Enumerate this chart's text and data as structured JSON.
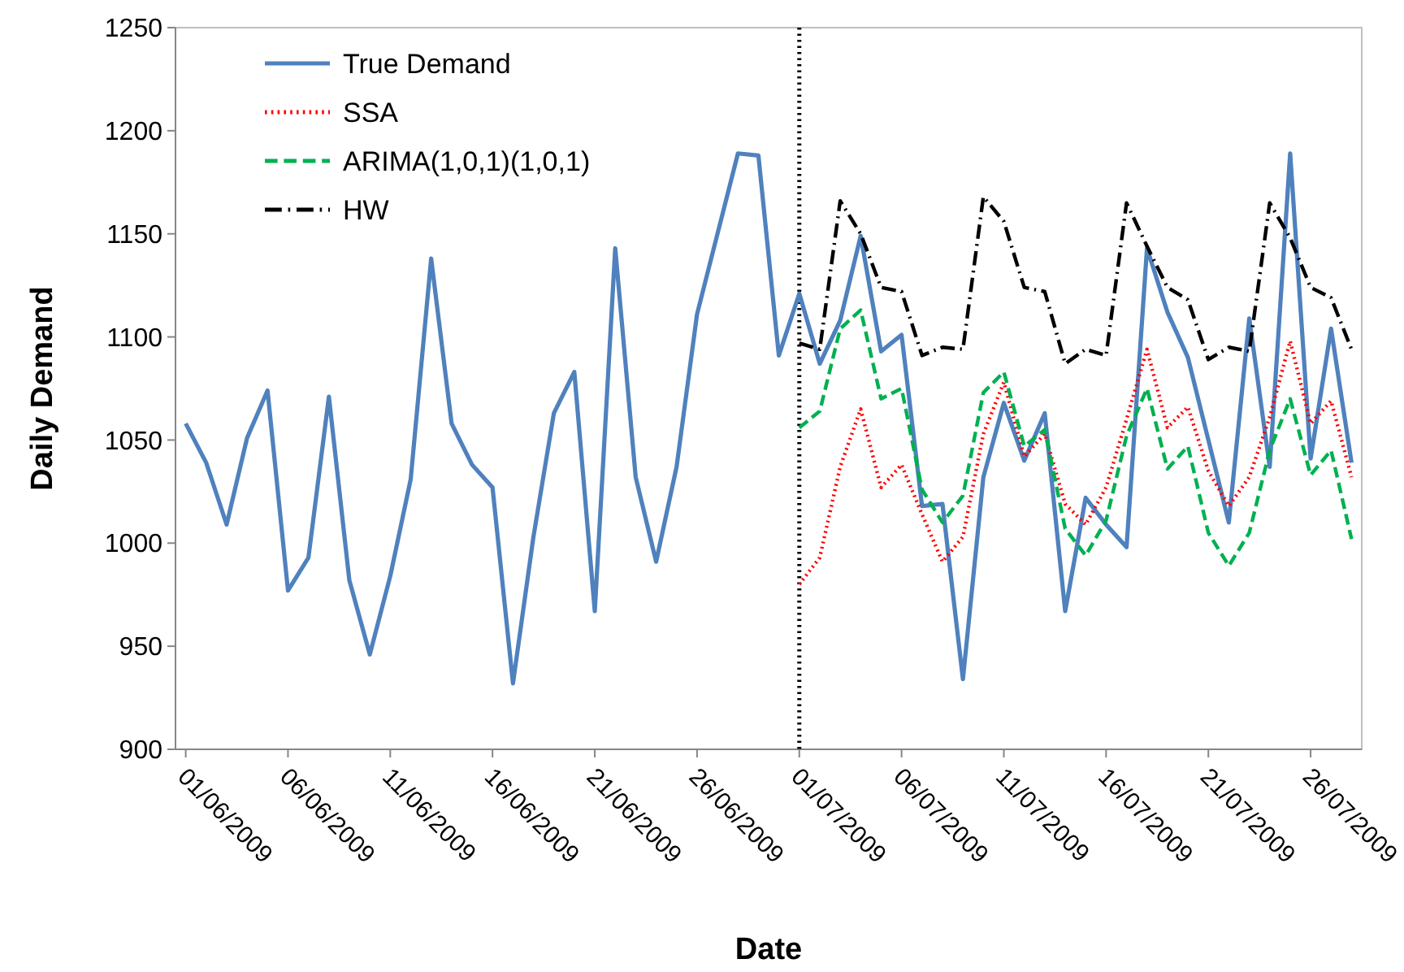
{
  "chart_data": {
    "type": "line",
    "xlabel": "Date",
    "ylabel": "Daily Demand",
    "categories": [
      "01/06/2009",
      null,
      null,
      null,
      null,
      "06/06/2009",
      null,
      null,
      null,
      null,
      "11/06/2009",
      null,
      null,
      null,
      null,
      "16/06/2009",
      null,
      null,
      null,
      null,
      "21/06/2009",
      null,
      null,
      null,
      null,
      "26/06/2009",
      null,
      null,
      null,
      null,
      "01/07/2009",
      null,
      null,
      null,
      null,
      "06/07/2009",
      null,
      null,
      null,
      null,
      "11/07/2009",
      null,
      null,
      null,
      null,
      "16/07/2009",
      null,
      null,
      null,
      null,
      "21/07/2009",
      null,
      null,
      null,
      null,
      "26/07/2009",
      null,
      null
    ],
    "ylim": [
      900,
      1250
    ],
    "yticks": [
      900,
      950,
      1000,
      1050,
      1100,
      1150,
      1200,
      1250
    ],
    "grid": false,
    "legend": "top left",
    "marker": "none",
    "ref_lines": [
      {
        "axis": "x",
        "value": "01/07/2009",
        "color": "#000000",
        "line_style": "dotted"
      }
    ],
    "series": [
      {
        "name": "True Demand",
        "color": "#4f81bd",
        "line_style": "solid",
        "values": [
          1058,
          1039,
          1009,
          1051,
          1074,
          977,
          993,
          1071,
          982,
          946,
          984,
          1031,
          1138,
          1058,
          1038,
          1027,
          932,
          1003,
          1063,
          1083,
          967,
          1143,
          1032,
          991,
          1037,
          1111,
          1150,
          1189,
          1188,
          1091,
          1121,
          1087,
          1108,
          1149,
          1093,
          1101,
          1018,
          1019,
          934,
          1032,
          1068,
          1040,
          1063,
          967,
          1022,
          1009,
          998,
          1143,
          1112,
          1090,
          1050,
          1010,
          1109,
          1037,
          1189,
          1041,
          1104,
          1039
        ]
      },
      {
        "name": "SSA",
        "color": "#ff0000",
        "line_style": "dotted",
        "values": [
          null,
          null,
          null,
          null,
          null,
          null,
          null,
          null,
          null,
          null,
          null,
          null,
          null,
          null,
          null,
          null,
          null,
          null,
          null,
          null,
          null,
          null,
          null,
          null,
          null,
          null,
          null,
          null,
          null,
          null,
          980,
          993,
          1037,
          1065,
          1027,
          1038,
          1014,
          991,
          1003,
          1053,
          1078,
          1042,
          1053,
          1019,
          1009,
          1027,
          1060,
          1094,
          1056,
          1066,
          1035,
          1018,
          1032,
          1061,
          1098,
          1058,
          1069,
          1032
        ]
      },
      {
        "name": "ARIMA(1,0,1)(1,0,1)",
        "color": "#00b050",
        "line_style": "dashed",
        "values": [
          null,
          null,
          null,
          null,
          null,
          null,
          null,
          null,
          null,
          null,
          null,
          null,
          null,
          null,
          null,
          null,
          null,
          null,
          null,
          null,
          null,
          null,
          null,
          null,
          null,
          null,
          null,
          null,
          null,
          null,
          1056,
          1064,
          1104,
          1113,
          1070,
          1075,
          1026,
          1010,
          1023,
          1073,
          1083,
          1047,
          1055,
          1007,
          994,
          1011,
          1052,
          1075,
          1036,
          1047,
          1005,
          989,
          1005,
          1045,
          1070,
          1033,
          1045,
          1002
        ]
      },
      {
        "name": "HW",
        "color": "#000000",
        "line_style": "dashdot",
        "values": [
          null,
          null,
          null,
          null,
          null,
          null,
          null,
          null,
          null,
          null,
          null,
          null,
          null,
          null,
          null,
          null,
          null,
          null,
          null,
          null,
          null,
          null,
          null,
          null,
          null,
          null,
          null,
          null,
          null,
          null,
          1097,
          1094,
          1166,
          1150,
          1124,
          1122,
          1091,
          1095,
          1094,
          1168,
          1156,
          1124,
          1122,
          1087,
          1094,
          1091,
          1165,
          1144,
          1124,
          1118,
          1089,
          1095,
          1093,
          1165,
          1148,
          1124,
          1119,
          1094
        ]
      }
    ]
  }
}
